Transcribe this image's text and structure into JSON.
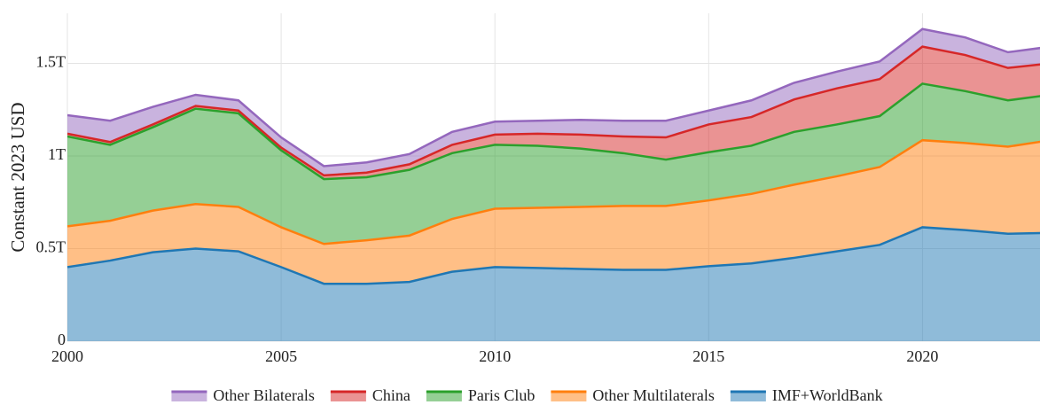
{
  "chart_data": {
    "type": "stacked_area",
    "y_label": "Constant 2023 USD",
    "x": [
      2000,
      2001,
      2002,
      2003,
      2004,
      2005,
      2006,
      2007,
      2008,
      2009,
      2010,
      2011,
      2012,
      2013,
      2014,
      2015,
      2016,
      2017,
      2018,
      2019,
      2020,
      2021,
      2022,
      2023
    ],
    "series": [
      {
        "name": "IMF+WorldBank",
        "color": "#1f77b4",
        "values": [
          0.4,
          0.435,
          0.48,
          0.5,
          0.485,
          0.4,
          0.31,
          0.31,
          0.32,
          0.375,
          0.4,
          0.395,
          0.39,
          0.385,
          0.385,
          0.405,
          0.42,
          0.45,
          0.485,
          0.52,
          0.615,
          0.6,
          0.58,
          0.585
        ]
      },
      {
        "name": "Other Multilaterals",
        "color": "#ff7f0e",
        "values": [
          0.22,
          0.215,
          0.225,
          0.24,
          0.24,
          0.215,
          0.215,
          0.235,
          0.25,
          0.285,
          0.315,
          0.325,
          0.335,
          0.345,
          0.345,
          0.355,
          0.375,
          0.395,
          0.405,
          0.42,
          0.47,
          0.47,
          0.47,
          0.5
        ]
      },
      {
        "name": "Paris Club",
        "color": "#2ca02c",
        "values": [
          0.485,
          0.41,
          0.45,
          0.515,
          0.505,
          0.415,
          0.35,
          0.34,
          0.355,
          0.355,
          0.345,
          0.335,
          0.315,
          0.285,
          0.25,
          0.26,
          0.26,
          0.285,
          0.28,
          0.275,
          0.305,
          0.28,
          0.25,
          0.245
        ]
      },
      {
        "name": "China",
        "color": "#d62728",
        "values": [
          0.015,
          0.015,
          0.015,
          0.015,
          0.015,
          0.015,
          0.02,
          0.025,
          0.03,
          0.045,
          0.055,
          0.065,
          0.075,
          0.09,
          0.12,
          0.15,
          0.155,
          0.175,
          0.195,
          0.2,
          0.2,
          0.195,
          0.175,
          0.17
        ]
      },
      {
        "name": "Other Bilaterals",
        "color": "#9467bd",
        "values": [
          0.1,
          0.115,
          0.095,
          0.06,
          0.055,
          0.055,
          0.05,
          0.055,
          0.055,
          0.07,
          0.07,
          0.07,
          0.08,
          0.085,
          0.09,
          0.075,
          0.09,
          0.09,
          0.09,
          0.095,
          0.095,
          0.095,
          0.085,
          0.09
        ]
      }
    ],
    "xlim": [
      2000,
      2022.75
    ],
    "xticks": [
      2000,
      2005,
      2010,
      2015,
      2020
    ],
    "ylim": [
      0,
      1.77
    ],
    "yticks": [
      0,
      {
        "value": 0.5,
        "label": "0.5T"
      },
      {
        "value": 1,
        "label": "1T"
      },
      {
        "value": 1.5,
        "label": "1.5T"
      }
    ],
    "grid": true,
    "legend": "bottom"
  }
}
